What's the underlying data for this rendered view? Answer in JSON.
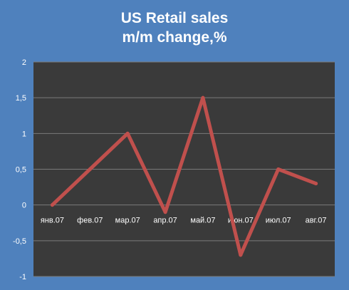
{
  "chart_data": {
    "type": "line",
    "title_lines": [
      "US Retail sales",
      "m/m change,%"
    ],
    "categories": [
      "янв.07",
      "фев.07",
      "мар.07",
      "апр.07",
      "май.07",
      "июн.07",
      "июл.07",
      "авг.07"
    ],
    "series": [
      {
        "values": [
          0,
          0.5,
          1,
          -0.1,
          1.5,
          -0.7,
          0.5,
          0.3
        ]
      }
    ],
    "y_ticks": [
      "2",
      "1,5",
      "1",
      "0,5",
      "0",
      "-0,5",
      "-1"
    ],
    "ylim": [
      -1,
      2
    ],
    "grid": true,
    "legend": "none",
    "colors": {
      "background": "#4f81bd",
      "plot_area": "#3a3a3a",
      "gridline": "#7a7a7a",
      "line": "#c0504d",
      "text": "#ffffff"
    }
  }
}
